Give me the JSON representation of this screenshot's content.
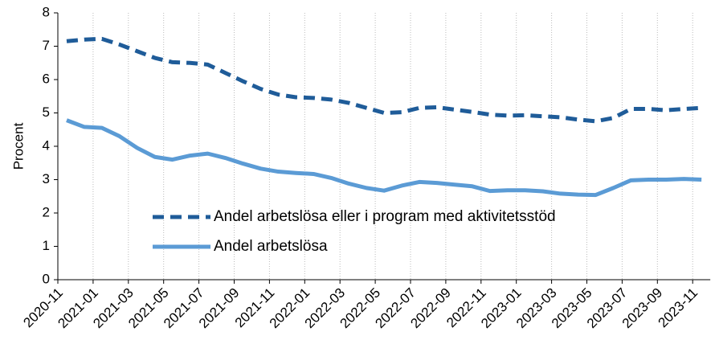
{
  "chart_data": {
    "type": "line",
    "categories": [
      "2020-11",
      null,
      "2021-01",
      null,
      "2021-03",
      null,
      "2021-05",
      null,
      "2021-07",
      null,
      "2021-09",
      null,
      "2021-11",
      null,
      "2022-01",
      null,
      "2022-03",
      null,
      "2022-05",
      null,
      "2022-07",
      null,
      "2022-09",
      null,
      "2022-11",
      null,
      "2023-01",
      null,
      "2023-03",
      null,
      "2023-05",
      null,
      "2023-07",
      null,
      "2023-09",
      null,
      "2023-11"
    ],
    "y_label": "Procent",
    "ylim": [
      0,
      8
    ],
    "yticks": [
      0,
      1,
      2,
      3,
      4,
      5,
      6,
      7,
      8
    ],
    "legend": "inside-bottom-left",
    "series": [
      {
        "name": "Andel arbetslösa eller i program med aktivitetsstöd",
        "color": "#1f5c99",
        "dash": true,
        "values": [
          7.15,
          7.2,
          7.22,
          7.05,
          6.85,
          6.65,
          6.52,
          6.5,
          6.45,
          6.2,
          5.95,
          5.72,
          5.55,
          5.47,
          5.45,
          5.4,
          5.3,
          5.15,
          5.0,
          5.02,
          5.15,
          5.17,
          5.1,
          5.03,
          4.95,
          4.92,
          4.93,
          4.9,
          4.87,
          4.8,
          4.75,
          4.85,
          5.12,
          5.12,
          5.08,
          5.12,
          5.15
        ]
      },
      {
        "name": "Andel arbetslösa",
        "color": "#5b9bd5",
        "dash": false,
        "values": [
          4.78,
          4.58,
          4.55,
          4.3,
          3.95,
          3.68,
          3.6,
          3.72,
          3.78,
          3.65,
          3.48,
          3.33,
          3.24,
          3.2,
          3.17,
          3.05,
          2.88,
          2.75,
          2.67,
          2.82,
          2.93,
          2.9,
          2.85,
          2.8,
          2.66,
          2.68,
          2.68,
          2.65,
          2.58,
          2.55,
          2.54,
          2.75,
          2.98,
          3.0,
          3.0,
          3.02,
          3.0
        ]
      }
    ]
  }
}
